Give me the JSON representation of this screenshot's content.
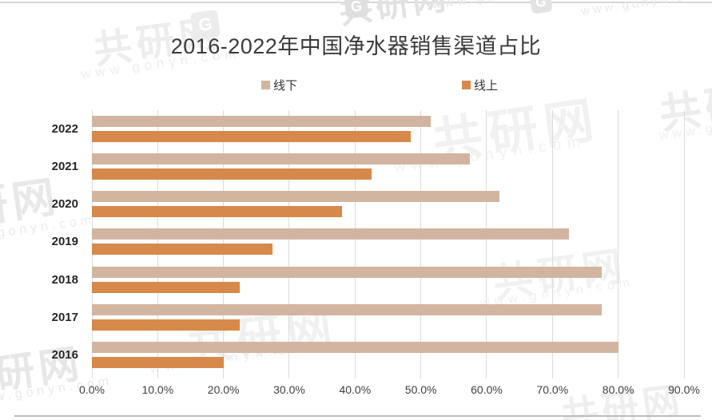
{
  "watermark": {
    "brand": "共研网",
    "url": "www.gonyn.com",
    "logo_letter": "G"
  },
  "chart_data": {
    "type": "bar",
    "orientation": "horizontal",
    "title": "2016-2022年中国净水器销售渠道占比",
    "categories": [
      "2022",
      "2021",
      "2020",
      "2019",
      "2018",
      "2017",
      "2016"
    ],
    "series": [
      {
        "name": "线下",
        "color": "#d2b5a1",
        "values": [
          51.5,
          57.5,
          62,
          72.5,
          77.5,
          77.5,
          80
        ]
      },
      {
        "name": "线上",
        "color": "#d6894a",
        "values": [
          48.5,
          42.5,
          38,
          27.5,
          22.5,
          22.5,
          20
        ]
      }
    ],
    "x_axis": {
      "min": 0,
      "max": 90,
      "tick_step": 10,
      "tick_labels": [
        "0.0%",
        "10.0%",
        "20.0%",
        "30.0%",
        "40.0%",
        "50.0%",
        "60.0%",
        "70.0%",
        "80.0%",
        "90.0%"
      ]
    },
    "grid": true,
    "legend_position": "top",
    "ylim": [
      0,
      90
    ]
  },
  "colors": {
    "background": "#ffffff",
    "gridline": "#dadada",
    "title_text": "#3b3b3b",
    "axis_text": "#3f3f3f",
    "offline_bar": "#d2b5a1",
    "online_bar": "#d6894a",
    "watermark_light": "#f0f0f0",
    "watermark_mid": "#e6e6e6"
  }
}
